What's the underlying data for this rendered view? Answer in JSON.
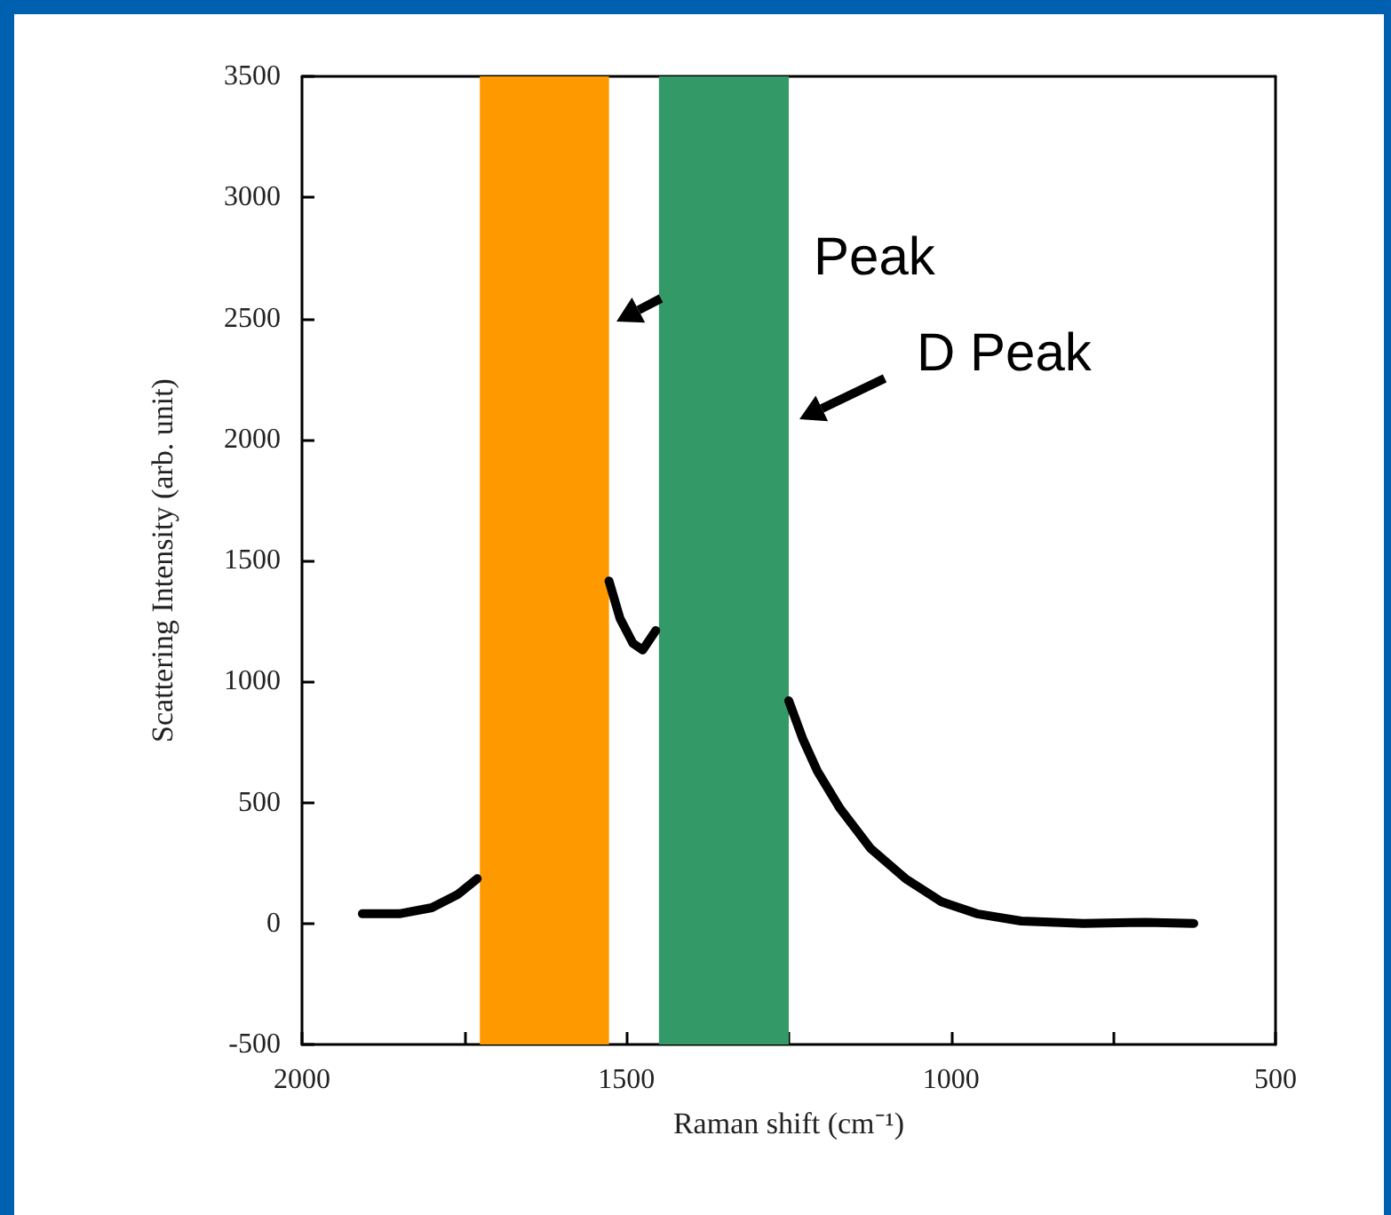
{
  "chart_data": {
    "type": "line",
    "xlabel": "Raman shift (cm⁻¹)",
    "ylabel": "Scattering Intensity (arb. unit)",
    "x": [
      1907,
      1850,
      1800,
      1760,
      1730,
      1620,
      1527,
      1510,
      1490,
      1475,
      1455,
      1350,
      1250,
      1228,
      1206,
      1171,
      1124,
      1070,
      1015,
      960,
      892,
      796,
      700,
      626
    ],
    "series": [
      {
        "color": "#000000",
        "values": [
          40,
          40,
          65,
          120,
          185,
          null,
          1415,
          1260,
          1157,
          1130,
          1210,
          null,
          920,
          760,
          630,
          475,
          310,
          185,
          90,
          40,
          10,
          0,
          5,
          0
        ]
      }
    ],
    "xlim": [
      2000,
      500
    ],
    "ylim": [
      -500,
      3500
    ],
    "xticks": [
      2000,
      {
        "value": 1750,
        "label": null
      },
      1500,
      {
        "value": 1250,
        "label": null
      },
      1000,
      {
        "value": 750,
        "label": null
      },
      500
    ],
    "yticks": [
      -500,
      0,
      500,
      1000,
      1500,
      2000,
      2500,
      3000,
      3500
    ],
    "bands": [
      {
        "axis": "x",
        "from": 1726,
        "to": 1527,
        "color": "#ff9900"
      },
      {
        "axis": "x",
        "from": 1450,
        "to": 1250,
        "color": "#339966"
      }
    ],
    "annotations": [
      "Peak",
      "D Peak"
    ],
    "grid": false,
    "marker": "none",
    "line_style": "solid"
  }
}
